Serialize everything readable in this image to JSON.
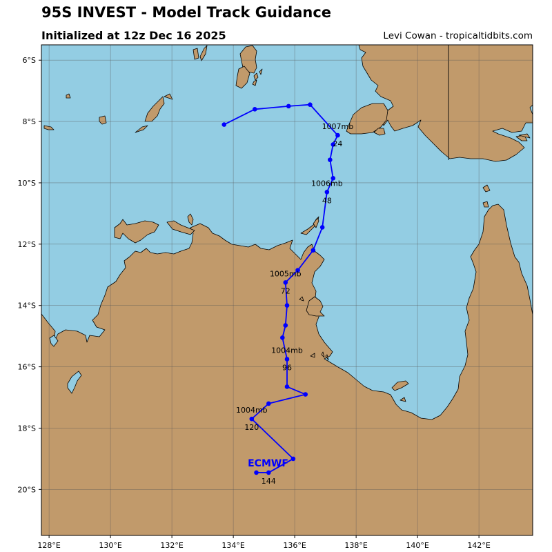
{
  "header": {
    "title": "95S INVEST - Model Track Guidance",
    "subtitle": "Initialized at 12z Dec 16 2025",
    "credit": "Levi Cowan - tropicaltidbits.com"
  },
  "colors": {
    "ocean": "#93cde3",
    "land": "#c19a6b",
    "track": "#0000ff",
    "grid": "#555555"
  },
  "map": {
    "extent": {
      "lon": [
        127.75,
        143.75
      ],
      "lat": [
        -21.5,
        -5.5
      ]
    },
    "lon_ticks": [
      {
        "value": 128,
        "label": "128°E"
      },
      {
        "value": 130,
        "label": "130°E"
      },
      {
        "value": 132,
        "label": "132°E"
      },
      {
        "value": 134,
        "label": "134°E"
      },
      {
        "value": 136,
        "label": "136°E"
      },
      {
        "value": 138,
        "label": "138°E"
      },
      {
        "value": 140,
        "label": "140°E"
      },
      {
        "value": 142,
        "label": "142°E"
      }
    ],
    "lat_ticks": [
      {
        "value": -6,
        "label": "6°S"
      },
      {
        "value": -8,
        "label": "8°S"
      },
      {
        "value": -10,
        "label": "10°S"
      },
      {
        "value": -12,
        "label": "12°S"
      },
      {
        "value": -14,
        "label": "14°S"
      },
      {
        "value": -16,
        "label": "16°S"
      },
      {
        "value": -18,
        "label": "18°S"
      },
      {
        "value": -20,
        "label": "20°S"
      }
    ]
  },
  "track": {
    "model": "ECMWF",
    "points": [
      {
        "lon": 133.7,
        "lat": -8.1
      },
      {
        "lon": 134.7,
        "lat": -7.6
      },
      {
        "lon": 135.8,
        "lat": -7.5
      },
      {
        "lon": 136.5,
        "lat": -7.45
      },
      {
        "lon": 137.4,
        "lat": -8.45
      },
      {
        "lon": 137.25,
        "lat": -8.75
      },
      {
        "lon": 137.15,
        "lat": -9.25
      },
      {
        "lon": 137.25,
        "lat": -9.85
      },
      {
        "lon": 137.05,
        "lat": -10.3
      },
      {
        "lon": 136.9,
        "lat": -11.45
      },
      {
        "lon": 136.6,
        "lat": -12.2
      },
      {
        "lon": 136.1,
        "lat": -12.85
      },
      {
        "lon": 135.7,
        "lat": -13.25
      },
      {
        "lon": 135.75,
        "lat": -14.0
      },
      {
        "lon": 135.7,
        "lat": -14.65
      },
      {
        "lon": 135.6,
        "lat": -15.05
      },
      {
        "lon": 135.75,
        "lat": -15.75
      },
      {
        "lon": 135.75,
        "lat": -16.65
      },
      {
        "lon": 136.35,
        "lat": -16.9
      },
      {
        "lon": 135.15,
        "lat": -17.2
      },
      {
        "lon": 134.6,
        "lat": -17.7
      },
      {
        "lon": 135.95,
        "lat": -19.0
      },
      {
        "lon": 135.15,
        "lat": -19.45
      },
      {
        "lon": 134.75,
        "lat": -19.45
      }
    ],
    "labels": [
      {
        "pressure": "1007mb",
        "hour": "24",
        "lon": 137.4,
        "lat": -8.45
      },
      {
        "pressure": "1006mb",
        "hour": "48",
        "lon": 137.05,
        "lat": -10.3
      },
      {
        "pressure": "1005mb",
        "hour": "72",
        "lon": 135.7,
        "lat": -13.25
      },
      {
        "pressure": "1004mb",
        "hour": "96",
        "lon": 135.75,
        "lat": -15.75
      },
      {
        "pressure": "1004mb",
        "hour": "120",
        "lon": 134.6,
        "lat": -17.7
      },
      {
        "pressure": "",
        "hour": "144",
        "lon": 135.15,
        "lat": -19.45
      }
    ]
  }
}
